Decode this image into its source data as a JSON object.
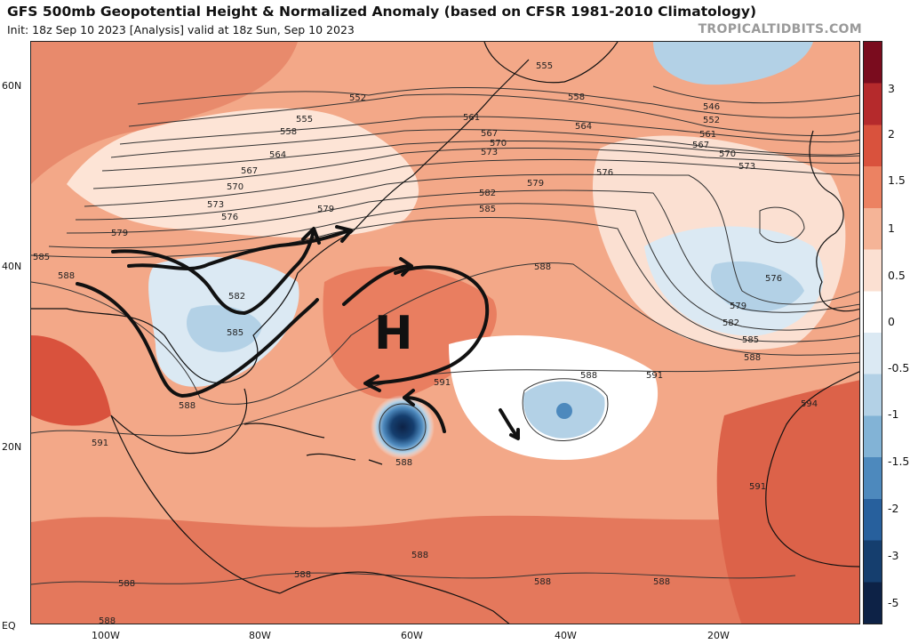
{
  "header": {
    "title": "GFS 500mb Geopotential Height & Normalized Anomaly (based on CFSR 1981-2010 Climatology)",
    "subtitle": "Init: 18z Sep 10 2023   [Analysis]   valid at 18z Sun, Sep 10 2023",
    "brand": "TROPICALTIDBITS.COM"
  },
  "axes": {
    "lat_labels": [
      "60N",
      "40N",
      "20N",
      "EQ"
    ],
    "lon_labels": [
      "100W",
      "80W",
      "60W",
      "40W",
      "20W"
    ]
  },
  "colorbar": {
    "labels": [
      "3",
      "2",
      "1.5",
      "1",
      "0.5",
      "0",
      "-0.5",
      "-1",
      "-1.5",
      "-2",
      "-3",
      "-5"
    ],
    "colors": [
      "#7a0c1e",
      "#b52a2c",
      "#d9523d",
      "#ec8262",
      "#f5b497",
      "#fbe0d2",
      "#ffffff",
      "#dbe9f3",
      "#b3d1e6",
      "#82b3d6",
      "#4d89bd",
      "#27609d",
      "#153e6e",
      "#0d2246"
    ]
  },
  "map": {
    "contour_labels": [
      "555",
      "552",
      "558",
      "561",
      "564",
      "567",
      "570",
      "573",
      "576",
      "579",
      "582",
      "585",
      "588",
      "591",
      "594",
      "546"
    ],
    "annotation_letter": "H"
  }
}
